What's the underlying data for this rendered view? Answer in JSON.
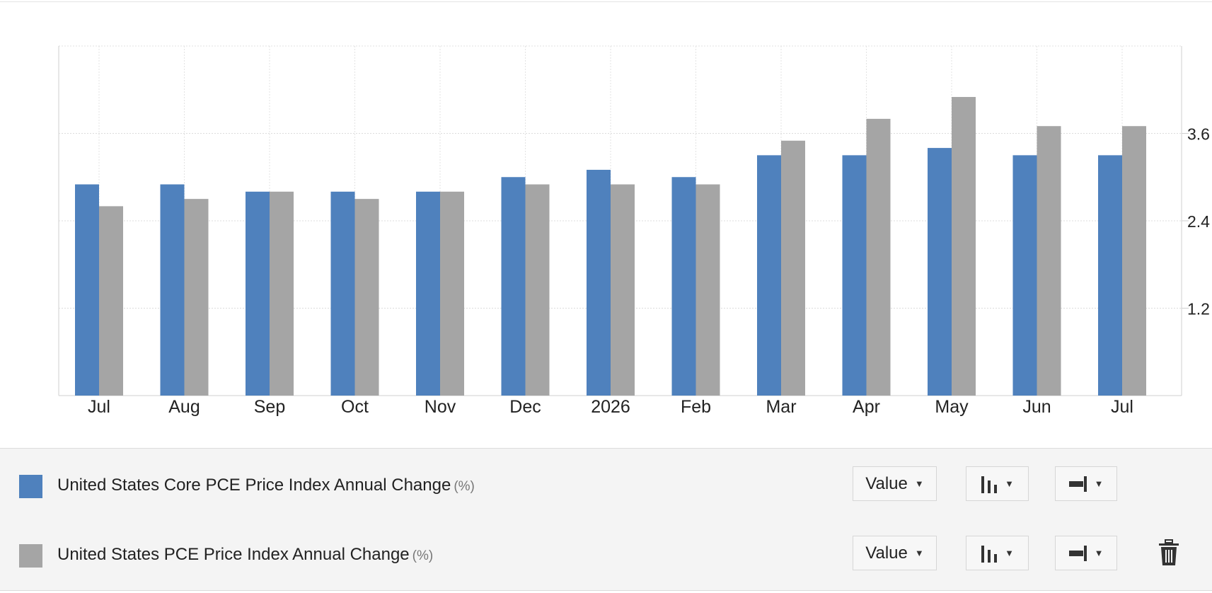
{
  "chart_data": {
    "type": "bar",
    "categories": [
      "Jul",
      "Aug",
      "Sep",
      "Oct",
      "Nov",
      "Dec",
      "2026",
      "Feb",
      "Mar",
      "Apr",
      "May",
      "Jun",
      "Jul"
    ],
    "series": [
      {
        "name": "United States Core PCE Price Index Annual Change",
        "color": "#4f81bd",
        "values": [
          2.9,
          2.9,
          2.8,
          2.8,
          2.8,
          3.0,
          3.1,
          3.0,
          3.3,
          3.3,
          3.4,
          3.3,
          3.3
        ]
      },
      {
        "name": "United States PCE Price Index Annual Change",
        "color": "#a5a5a5",
        "values": [
          2.6,
          2.7,
          2.8,
          2.7,
          2.8,
          2.9,
          2.9,
          2.9,
          3.5,
          3.8,
          4.1,
          3.7,
          3.7
        ]
      }
    ],
    "yticks": [
      1.2,
      2.4,
      3.6
    ],
    "ylim": [
      0,
      4.8
    ],
    "y_axis_side": "right",
    "grid": true
  },
  "legend": {
    "items": [
      {
        "label": "United States Core PCE Price Index Annual Change",
        "unit": "(%)",
        "color": "#4f81bd"
      },
      {
        "label": "United States PCE Price Index Annual Change",
        "unit": "(%)",
        "color": "#a5a5a5"
      }
    ],
    "value_label": "Value",
    "chart_type_icon": "bar-chart-icon",
    "axis_icon": "right-axis-icon",
    "delete_icon": "trash-icon"
  }
}
